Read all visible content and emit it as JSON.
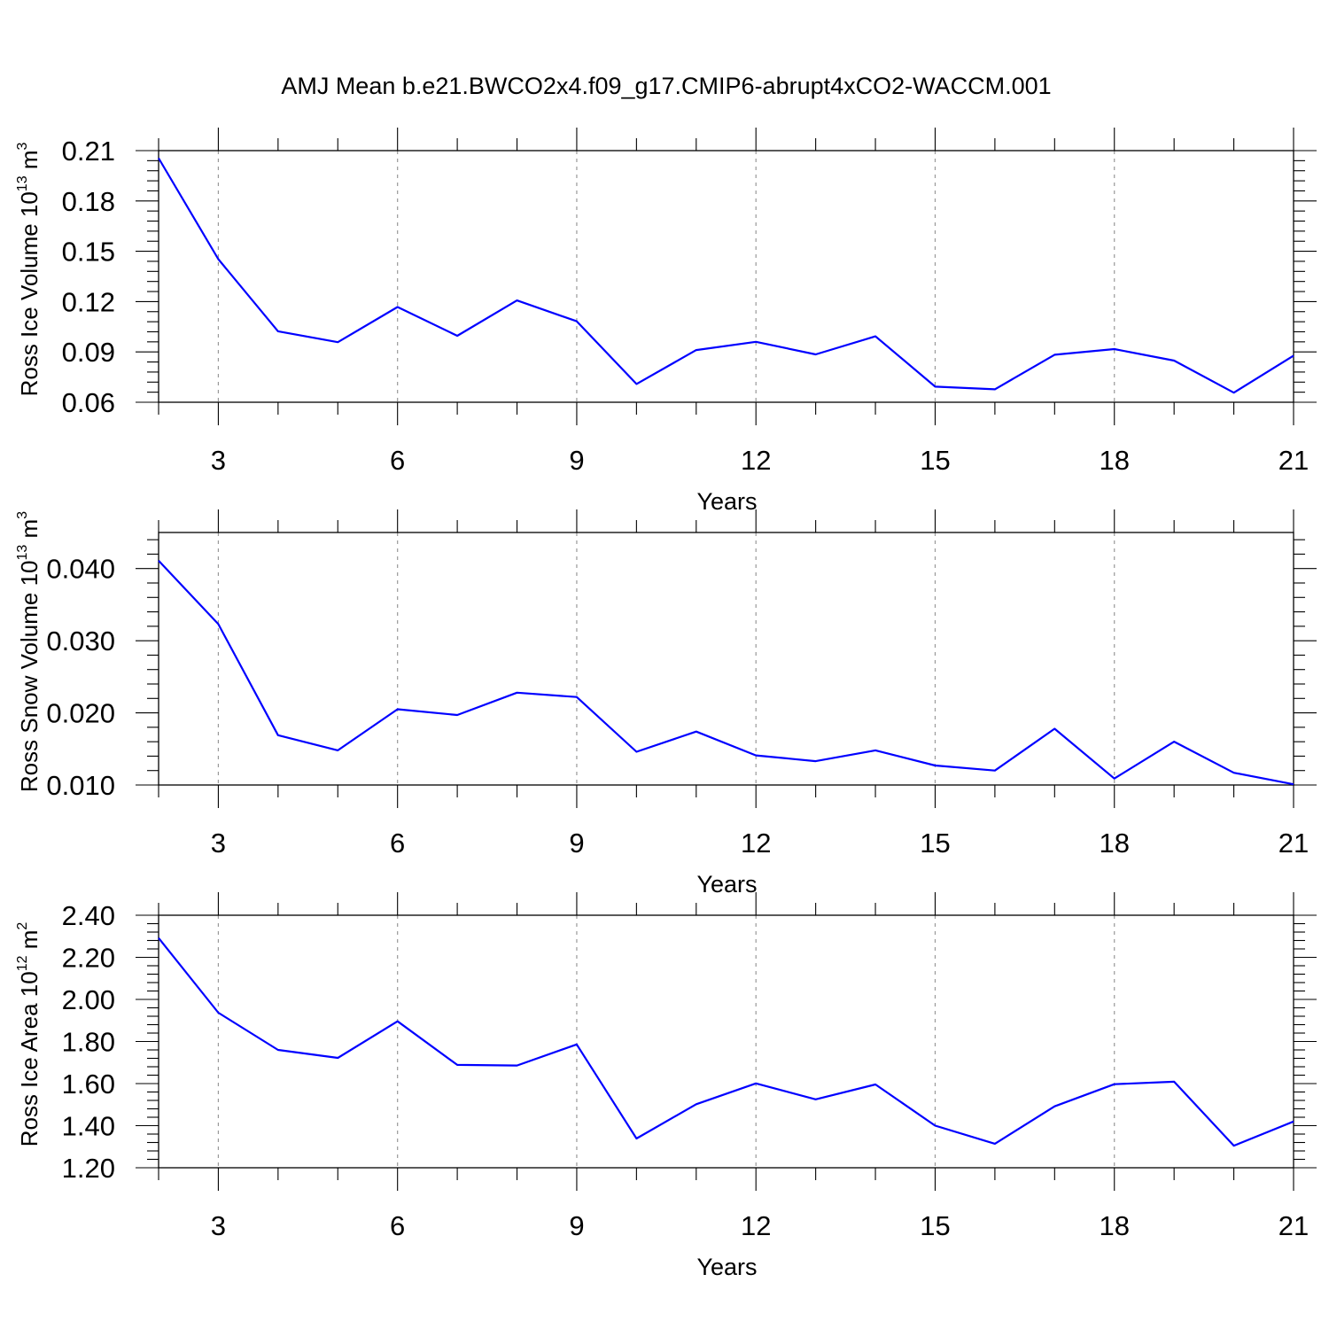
{
  "title": "AMJ Mean b.e21.BWCO2x4.f09_g17.CMIP6-abrupt4xCO2-WACCM.001",
  "colors": {
    "line": "#0000ff",
    "grid": "#999999"
  },
  "chart_data": [
    {
      "type": "line",
      "ylabel_main": "Ross Ice Volume 10",
      "ylabel_exp": "13",
      "ylabel_tail": " m",
      "ylabel_unit_exp": "3",
      "xlabel": "Years",
      "xlim": [
        2,
        21
      ],
      "ylim": [
        0.06,
        0.21
      ],
      "yticks": [
        "0.06",
        "0.09",
        "0.12",
        "0.15",
        "0.18",
        "0.21"
      ],
      "xticks": [
        "3",
        "6",
        "9",
        "12",
        "15",
        "18",
        "21"
      ],
      "grid": "vertical dashed at major x ticks",
      "x": [
        2,
        3,
        4,
        5,
        6,
        7,
        8,
        9,
        10,
        11,
        12,
        13,
        14,
        15,
        16,
        17,
        18,
        19,
        20,
        21
      ],
      "series": [
        {
          "values": [
            0.2055,
            0.1453,
            0.1023,
            0.0958,
            0.1168,
            0.0996,
            0.1207,
            0.1083,
            0.0709,
            0.0911,
            0.096,
            0.0885,
            0.0993,
            0.0693,
            0.0677,
            0.0883,
            0.0917,
            0.0848,
            0.0657,
            0.0878
          ]
        }
      ]
    },
    {
      "type": "line",
      "ylabel_main": "Ross Snow Volume 10",
      "ylabel_exp": "13",
      "ylabel_tail": " m",
      "ylabel_unit_exp": "3",
      "xlabel": "Years",
      "xlim": [
        2,
        21
      ],
      "ylim": [
        0.01,
        0.045
      ],
      "yticks": [
        "0.010",
        "0.020",
        "0.030",
        "0.040"
      ],
      "xticks": [
        "3",
        "6",
        "9",
        "12",
        "15",
        "18",
        "21"
      ],
      "grid": "vertical dashed at major x ticks",
      "x": [
        2,
        3,
        4,
        5,
        6,
        7,
        8,
        9,
        10,
        11,
        12,
        13,
        14,
        15,
        16,
        17,
        18,
        19,
        20,
        21
      ],
      "series": [
        {
          "values": [
            0.0411,
            0.0323,
            0.0169,
            0.0148,
            0.0205,
            0.0197,
            0.0228,
            0.0222,
            0.0146,
            0.0174,
            0.0141,
            0.0133,
            0.0148,
            0.0127,
            0.012,
            0.0178,
            0.0109,
            0.016,
            0.0117,
            0.0101
          ]
        }
      ]
    },
    {
      "type": "line",
      "ylabel_main": "Ross Ice Area 10",
      "ylabel_exp": "12",
      "ylabel_tail": " m",
      "ylabel_unit_exp": "2",
      "xlabel": "Years",
      "xlim": [
        2,
        21
      ],
      "ylim": [
        1.2,
        2.4
      ],
      "yticks": [
        "1.20",
        "1.40",
        "1.60",
        "1.80",
        "2.00",
        "2.20",
        "2.40"
      ],
      "xticks": [
        "3",
        "6",
        "9",
        "12",
        "15",
        "18",
        "21"
      ],
      "grid": "vertical dashed at major x ticks",
      "x": [
        2,
        3,
        4,
        5,
        6,
        7,
        8,
        9,
        10,
        11,
        12,
        13,
        14,
        15,
        16,
        17,
        18,
        19,
        20,
        21
      ],
      "series": [
        {
          "values": [
            2.292,
            1.937,
            1.76,
            1.722,
            1.896,
            1.689,
            1.686,
            1.786,
            1.339,
            1.502,
            1.601,
            1.525,
            1.596,
            1.4,
            1.314,
            1.492,
            1.597,
            1.609,
            1.305,
            1.42
          ]
        }
      ]
    }
  ]
}
